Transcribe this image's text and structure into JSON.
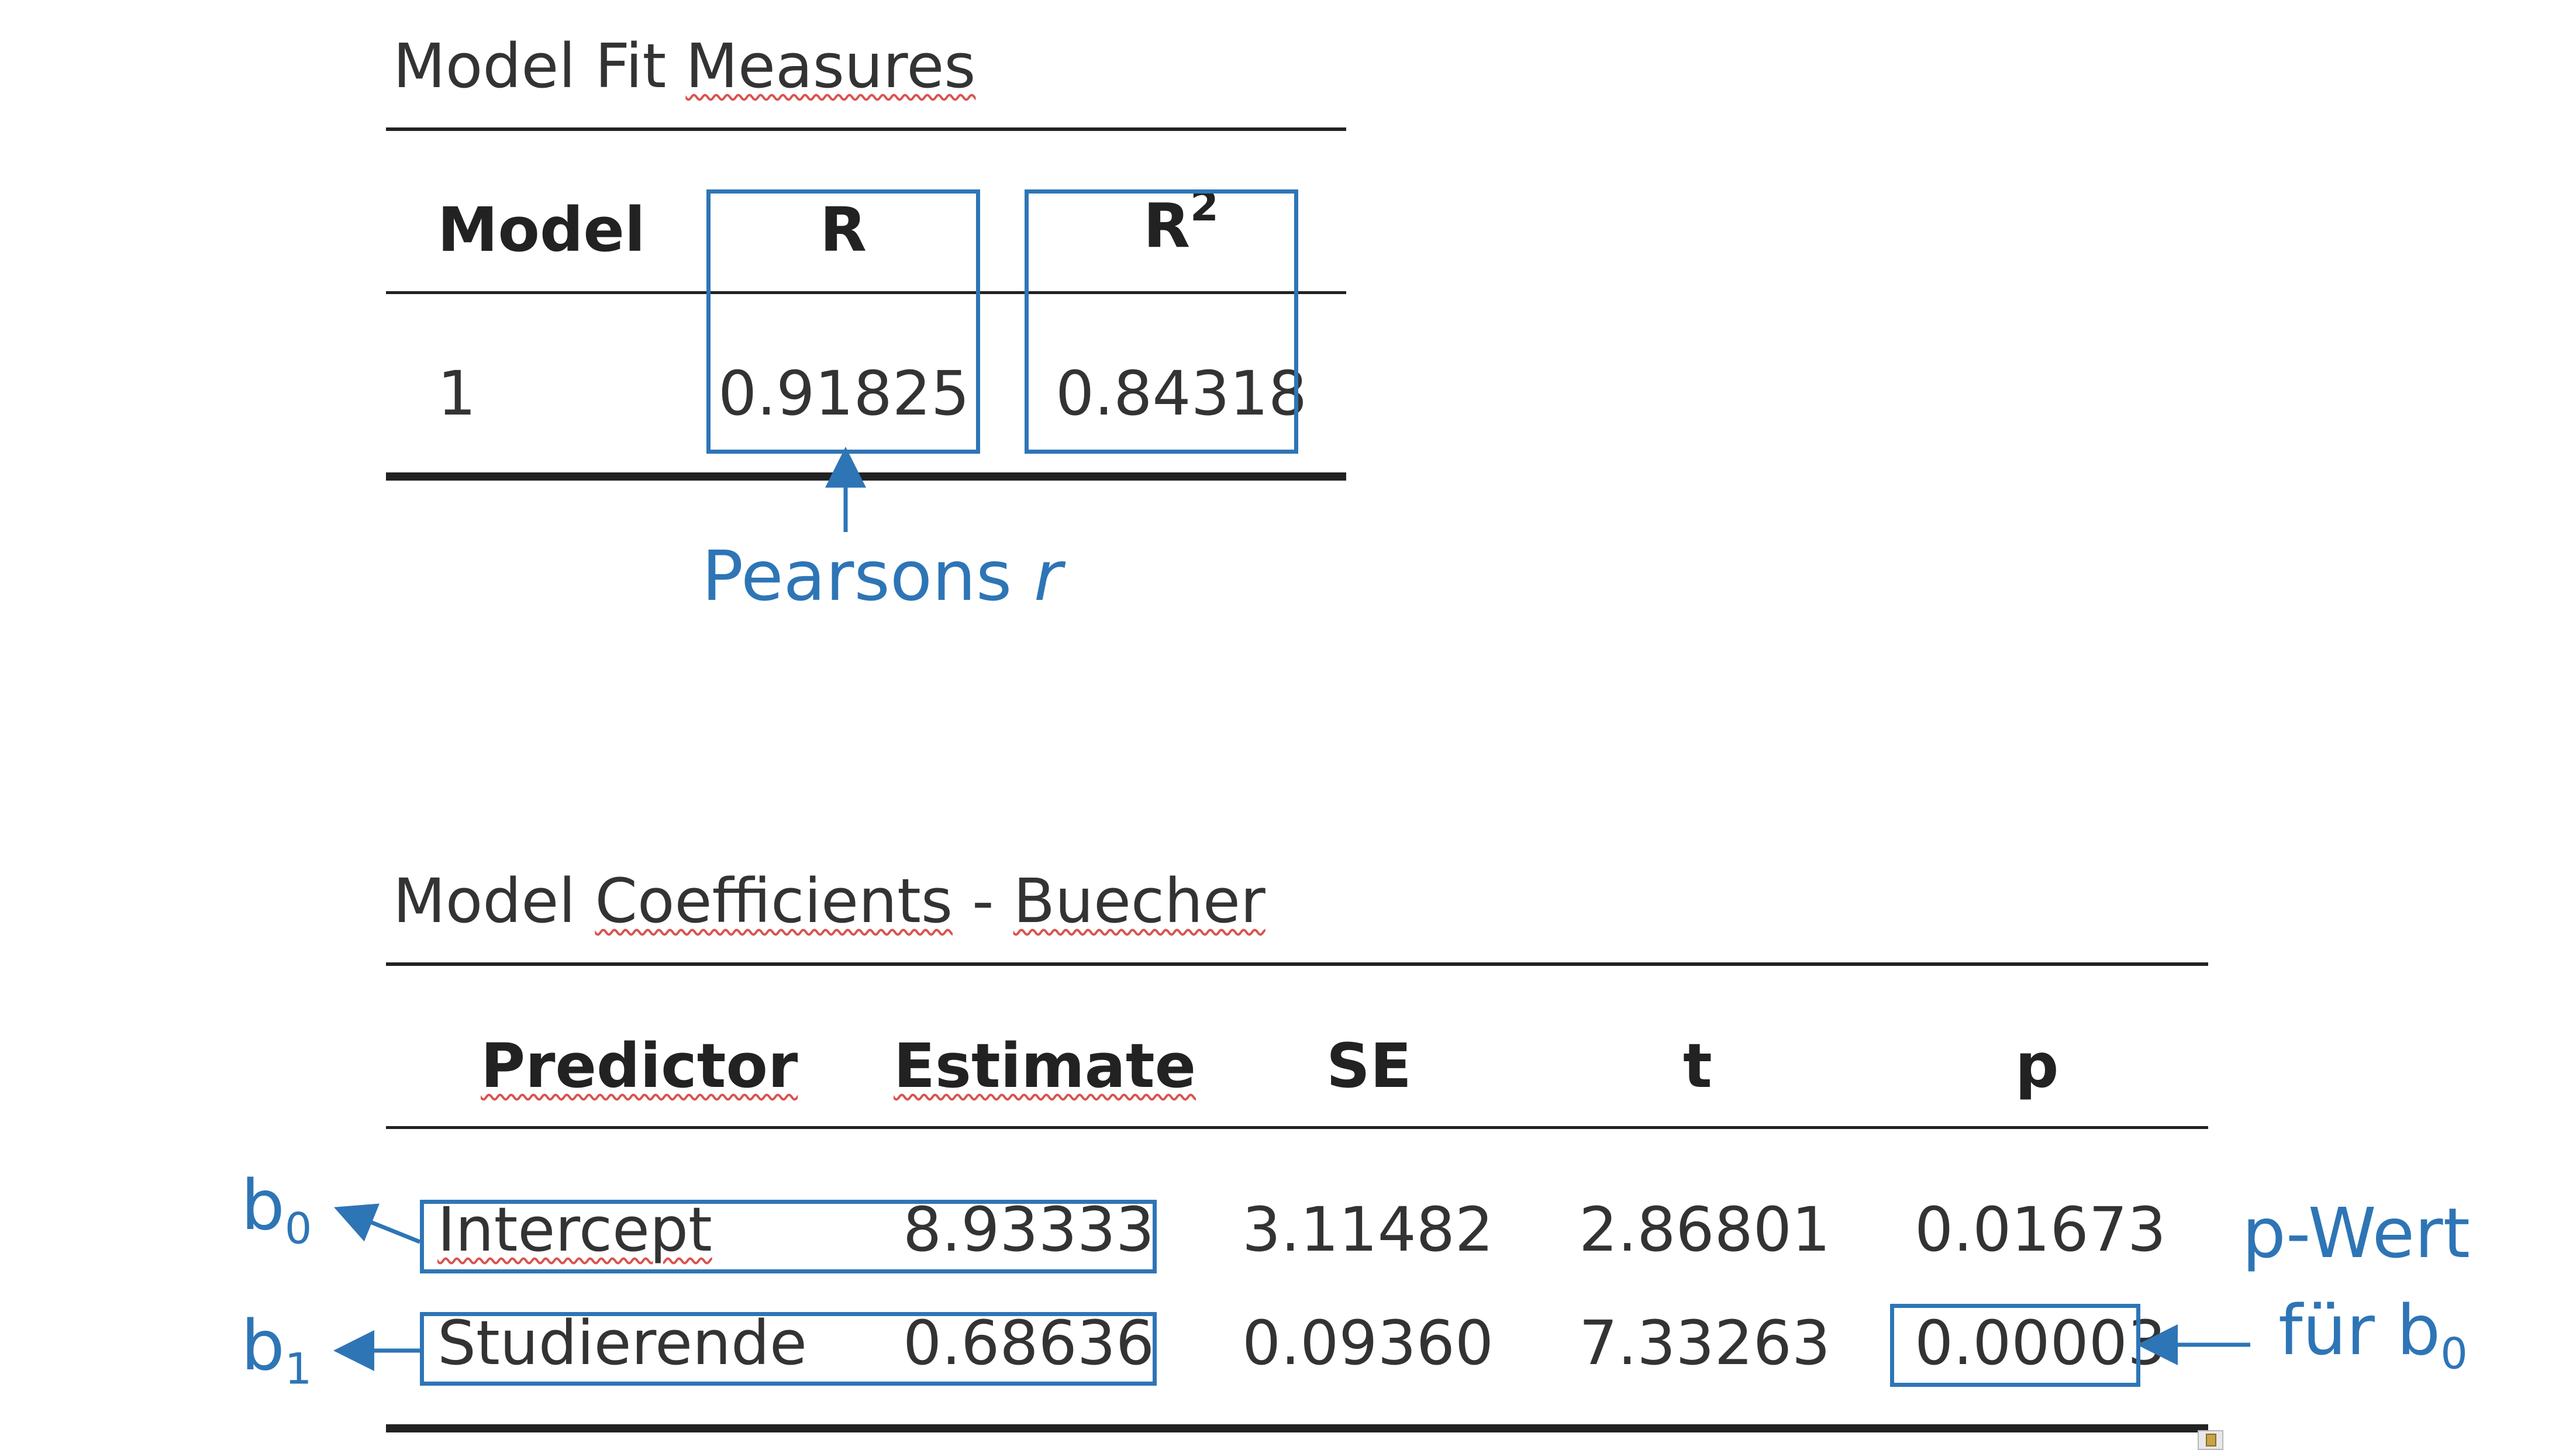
{
  "fit": {
    "title_a": "Model Fit ",
    "title_b": "Measures",
    "headers": [
      "Model",
      "R",
      "R"
    ],
    "r2_sup": "2",
    "row": {
      "model": "1",
      "r": "0.91825",
      "r2": "0.84318"
    },
    "annotation_text": "Pearsons ",
    "annotation_r": "r"
  },
  "coef": {
    "title_a": "Model ",
    "title_b": "Coefficients",
    "title_c": " - ",
    "title_d": "Buecher",
    "headers": [
      "Predictor",
      "Estimate",
      "SE",
      "t",
      "p"
    ],
    "rows": [
      {
        "predictor": "Intercept",
        "estimate": "8.93333",
        "se": "3.11482",
        "t": "2.86801",
        "p": "0.01673"
      },
      {
        "predictor": "Studierende",
        "estimate": "0.68636",
        "se": "0.09360",
        "t": "7.33263",
        "p": "0.00003"
      }
    ]
  },
  "labels": {
    "b": "b",
    "b0_sub": "0",
    "b1_sub": "1",
    "pwert_line1": "p-Wert",
    "pwert_line2": "für b",
    "pwert_sub": "0"
  },
  "colors": {
    "accent": "#2e75b6",
    "text": "#333333",
    "squiggle": "#d9534f"
  }
}
